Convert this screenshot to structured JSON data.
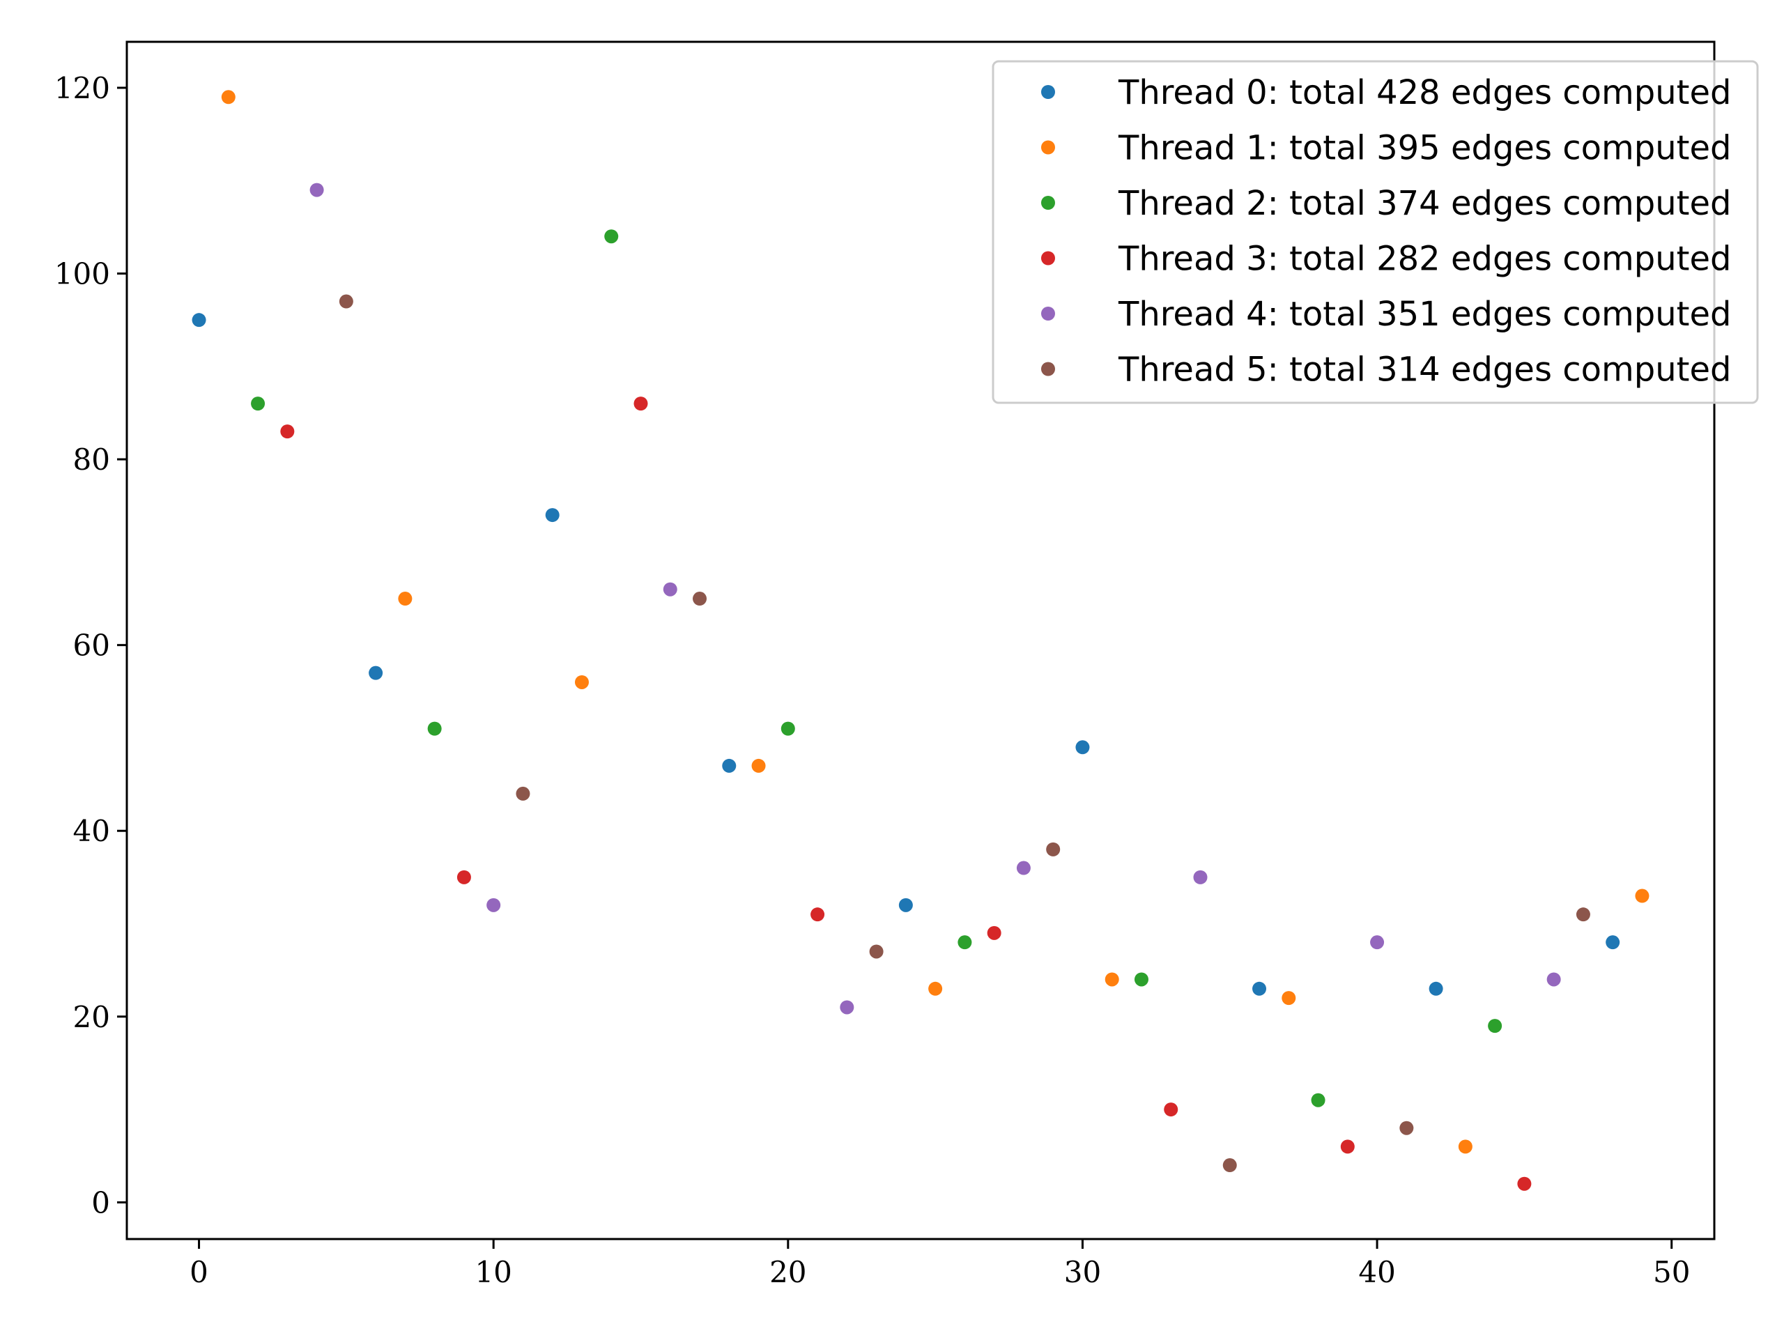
{
  "chart_data": {
    "type": "scatter",
    "title": "",
    "xlabel": "",
    "ylabel": "",
    "xlim": [
      -2.45,
      51.45
    ],
    "ylim": [
      -3.95,
      124.95
    ],
    "xticks": [
      0,
      10,
      20,
      30,
      40,
      50
    ],
    "yticks": [
      0,
      20,
      40,
      60,
      80,
      100,
      120
    ],
    "grid": false,
    "legend_position": "top-right",
    "series": [
      {
        "name": "Thread 0: total 428 edges computed",
        "color": "#1f77b4",
        "points": [
          [
            0,
            95
          ],
          [
            6,
            57
          ],
          [
            12,
            74
          ],
          [
            18,
            47
          ],
          [
            24,
            32
          ],
          [
            30,
            49
          ],
          [
            36,
            23
          ],
          [
            42,
            23
          ],
          [
            48,
            28
          ]
        ]
      },
      {
        "name": "Thread 1: total 395 edges computed",
        "color": "#ff7f0e",
        "points": [
          [
            1,
            119
          ],
          [
            7,
            65
          ],
          [
            13,
            56
          ],
          [
            19,
            47
          ],
          [
            25,
            23
          ],
          [
            31,
            24
          ],
          [
            37,
            22
          ],
          [
            43,
            6
          ],
          [
            49,
            33
          ]
        ]
      },
      {
        "name": "Thread 2: total 374 edges computed",
        "color": "#2ca02c",
        "points": [
          [
            2,
            86
          ],
          [
            8,
            51
          ],
          [
            14,
            104
          ],
          [
            20,
            51
          ],
          [
            26,
            28
          ],
          [
            32,
            24
          ],
          [
            38,
            11
          ],
          [
            44,
            19
          ]
        ]
      },
      {
        "name": "Thread 3: total 282 edges computed",
        "color": "#d62728",
        "points": [
          [
            3,
            83
          ],
          [
            9,
            35
          ],
          [
            15,
            86
          ],
          [
            21,
            31
          ],
          [
            27,
            29
          ],
          [
            33,
            10
          ],
          [
            39,
            6
          ],
          [
            45,
            2
          ]
        ]
      },
      {
        "name": "Thread 4: total 351 edges computed",
        "color": "#9467bd",
        "points": [
          [
            4,
            109
          ],
          [
            10,
            32
          ],
          [
            16,
            66
          ],
          [
            22,
            21
          ],
          [
            28,
            36
          ],
          [
            34,
            35
          ],
          [
            40,
            28
          ],
          [
            46,
            24
          ]
        ]
      },
      {
        "name": "Thread 5: total 314 edges computed",
        "color": "#8c564b",
        "points": [
          [
            5,
            97
          ],
          [
            11,
            44
          ],
          [
            17,
            65
          ],
          [
            23,
            27
          ],
          [
            29,
            38
          ],
          [
            35,
            4
          ],
          [
            41,
            8
          ],
          [
            47,
            31
          ]
        ]
      }
    ]
  }
}
